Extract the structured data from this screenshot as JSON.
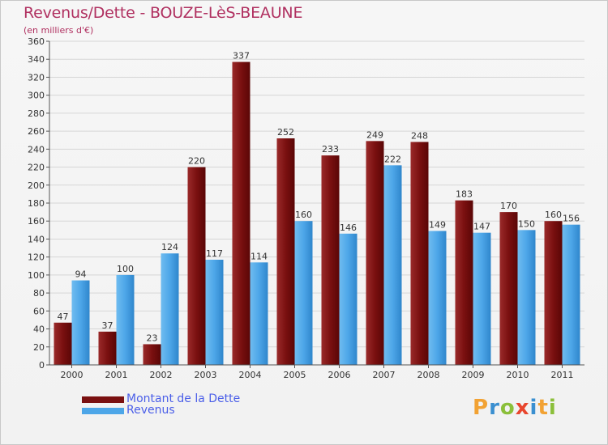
{
  "colors": {
    "debt": "#7a1010",
    "revenue": "#4da6e8",
    "title": "#b03060",
    "legend_text": "#4a5ee8"
  },
  "logo": {
    "text": "Proxiti",
    "letters": [
      {
        "char": "P",
        "color": "#f2a233"
      },
      {
        "char": "r",
        "color": "#3a8fd0"
      },
      {
        "char": "o",
        "color": "#8bbf3a"
      },
      {
        "char": "x",
        "color": "#e8462e"
      },
      {
        "char": "i",
        "color": "#3a8fd0"
      },
      {
        "char": "t",
        "color": "#f2a233"
      },
      {
        "char": "i",
        "color": "#8bbf3a"
      }
    ]
  },
  "chart_data": {
    "type": "bar",
    "title": "Revenus/Dette - BOUZE-LèS-BEAUNE",
    "subtitle": "(en milliers d'€)",
    "xlabel": "",
    "ylabel": "",
    "ylim": [
      0,
      360
    ],
    "ytick_step": 20,
    "grid": true,
    "legend_position": "bottom-left",
    "categories": [
      "2000",
      "2001",
      "2002",
      "2003",
      "2004",
      "2005",
      "2006",
      "2007",
      "2008",
      "2009",
      "2010",
      "2011"
    ],
    "series": [
      {
        "name": "Montant de la Dette",
        "color": "#7a1010",
        "values": [
          47,
          37,
          23,
          220,
          337,
          252,
          233,
          249,
          248,
          183,
          170,
          160
        ]
      },
      {
        "name": "Revenus",
        "color": "#4da6e8",
        "values": [
          94,
          100,
          124,
          117,
          114,
          160,
          146,
          222,
          149,
          147,
          150,
          156
        ]
      }
    ]
  }
}
